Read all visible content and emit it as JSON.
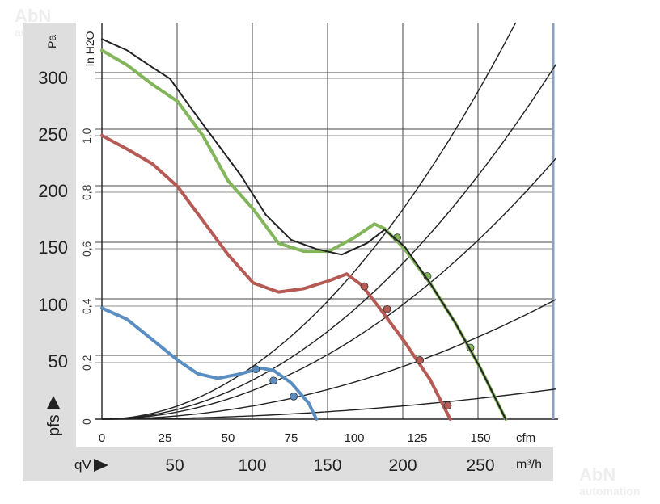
{
  "watermark": {
    "brand": "AbN",
    "sub": "automation"
  },
  "chart_data": {
    "type": "line",
    "title": "",
    "units": {
      "pressure_left": "Pa",
      "pressure_inner": "in H2O",
      "flow_top": "cfm",
      "flow_bottom": "m³/h"
    },
    "labels": {
      "pressure": "pfs",
      "flow": "qV"
    },
    "ylim": [
      0,
      335
    ],
    "xlim_cfm": [
      0,
      180
    ],
    "pa_ticks": [
      "0",
      "50",
      "100",
      "150",
      "200",
      "250",
      "300"
    ],
    "inh2o_ticks": [
      "0",
      "0,2",
      "0,4",
      "0,6",
      "0,8",
      "1,0"
    ],
    "cfm_ticks": [
      "0",
      "25",
      "50",
      "75",
      "100",
      "125",
      "150"
    ],
    "m3h_ticks": [
      "50",
      "100",
      "150",
      "200",
      "250"
    ],
    "grid": true,
    "series": [
      {
        "color": "#83b55a",
        "points": [
          [
            0,
            325
          ],
          [
            10,
            312
          ],
          [
            20,
            295
          ],
          [
            30,
            280
          ],
          [
            40,
            250
          ],
          [
            50,
            210
          ],
          [
            60,
            185
          ],
          [
            70,
            155
          ],
          [
            80,
            148
          ],
          [
            90,
            148
          ],
          [
            100,
            160
          ],
          [
            108,
            172
          ],
          [
            112,
            168
          ],
          [
            120,
            150
          ],
          [
            130,
            120
          ],
          [
            140,
            85
          ],
          [
            150,
            45
          ],
          [
            160,
            0
          ]
        ],
        "markers": [
          [
            117,
            160
          ],
          [
            129,
            126
          ],
          [
            146,
            63
          ]
        ]
      },
      {
        "color": "#222222",
        "points": [
          [
            0,
            335
          ],
          [
            10,
            325
          ],
          [
            20,
            310
          ],
          [
            27,
            300
          ],
          [
            35,
            275
          ],
          [
            45,
            245
          ],
          [
            55,
            215
          ],
          [
            65,
            180
          ],
          [
            75,
            158
          ],
          [
            85,
            150
          ],
          [
            95,
            145
          ],
          [
            105,
            155
          ],
          [
            112,
            167
          ],
          [
            120,
            152
          ],
          [
            130,
            120
          ],
          [
            140,
            85
          ],
          [
            150,
            45
          ],
          [
            160,
            0
          ]
        ]
      },
      {
        "color": "#b55a55",
        "points": [
          [
            0,
            250
          ],
          [
            10,
            238
          ],
          [
            20,
            225
          ],
          [
            30,
            205
          ],
          [
            40,
            175
          ],
          [
            50,
            145
          ],
          [
            60,
            120
          ],
          [
            70,
            112
          ],
          [
            80,
            115
          ],
          [
            90,
            122
          ],
          [
            97,
            128
          ],
          [
            103,
            118
          ],
          [
            110,
            98
          ],
          [
            120,
            68
          ],
          [
            130,
            35
          ],
          [
            138,
            0
          ]
        ],
        "markers": [
          [
            104,
            117
          ],
          [
            113,
            97
          ],
          [
            126,
            52
          ],
          [
            137,
            12
          ]
        ]
      },
      {
        "color": "#5a8ec2",
        "points": [
          [
            0,
            98
          ],
          [
            10,
            88
          ],
          [
            20,
            70
          ],
          [
            30,
            52
          ],
          [
            38,
            40
          ],
          [
            46,
            36
          ],
          [
            55,
            40
          ],
          [
            63,
            45
          ],
          [
            68,
            43
          ],
          [
            75,
            32
          ],
          [
            82,
            14
          ],
          [
            85,
            0
          ]
        ],
        "markers": [
          [
            61,
            44
          ],
          [
            68,
            34
          ],
          [
            76,
            20
          ]
        ]
      }
    ],
    "system_curves": [
      {
        "k": 0.013,
        "x_max": 180
      },
      {
        "k": 0.00966,
        "x_max": 180
      },
      {
        "k": 0.0071,
        "x_max": 180
      },
      {
        "k": 0.00326,
        "x_max": 180
      },
      {
        "k": 0.00082,
        "x_max": 180
      }
    ]
  }
}
